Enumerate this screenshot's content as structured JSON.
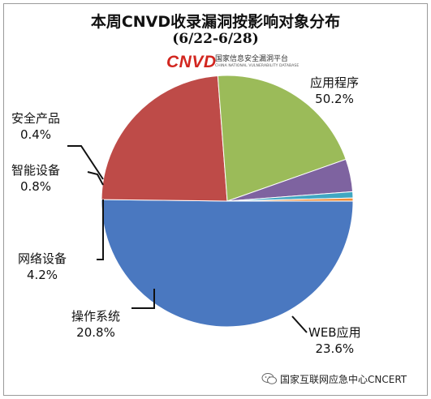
{
  "title": "本周CNVD收录漏洞按影响对象分布",
  "subtitle": "(6/22-6/28)",
  "logo": {
    "mark": "CNVD",
    "cn": "国家信息安全漏洞平台",
    "en": "CHINA NATIONAL VULNERABILITY DATABASE"
  },
  "watermark": "国家互联网应急中心CNCERT",
  "chart_data": {
    "type": "pie",
    "title": "本周CNVD收录漏洞按影响对象分布",
    "subtitle": "(6/22-6/28)",
    "slices": [
      {
        "name": "应用程序",
        "value": 50.2,
        "label": "50.2%",
        "color": "#4a78c0"
      },
      {
        "name": "WEB应用",
        "value": 23.6,
        "label": "23.6%",
        "color": "#be4b48"
      },
      {
        "name": "操作系统",
        "value": 20.8,
        "label": "20.8%",
        "color": "#9bbb59"
      },
      {
        "name": "网络设备",
        "value": 4.2,
        "label": "4.2%",
        "color": "#7e63a0"
      },
      {
        "name": "智能设备",
        "value": 0.8,
        "label": "0.8%",
        "color": "#40a7c2"
      },
      {
        "name": "安全产品",
        "value": 0.4,
        "label": "0.4%",
        "color": "#f08c36"
      }
    ],
    "start_angle_deg": 0,
    "direction": "clockwise-from-right",
    "legend": "none"
  }
}
